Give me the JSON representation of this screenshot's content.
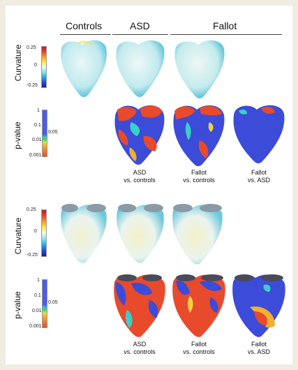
{
  "headers": {
    "controls": "Controls",
    "asd": "ASD",
    "fallot": "Fallot"
  },
  "curvature_scale": {
    "label": "Curvature",
    "top": "0.25",
    "mid": "0",
    "bottom": "-0.25"
  },
  "pvalue_scale": {
    "label": "p-value",
    "t1": "1",
    "t2": "0.1",
    "t3": "0.01",
    "t4": "0.001",
    "threshold": "0.05"
  },
  "comparisons": [
    {
      "line1": "ASD",
      "line2": "vs. controls"
    },
    {
      "line1": "Fallot",
      "line2": "vs. controls"
    },
    {
      "line1": "Fallot",
      "line2": "vs. ASD"
    }
  ],
  "colors": {
    "curvature_surface": "#c8ecef",
    "significant_high": "#e84a2c",
    "not_significant": "#3c4bd8",
    "intermediate": "#38d0c8"
  }
}
